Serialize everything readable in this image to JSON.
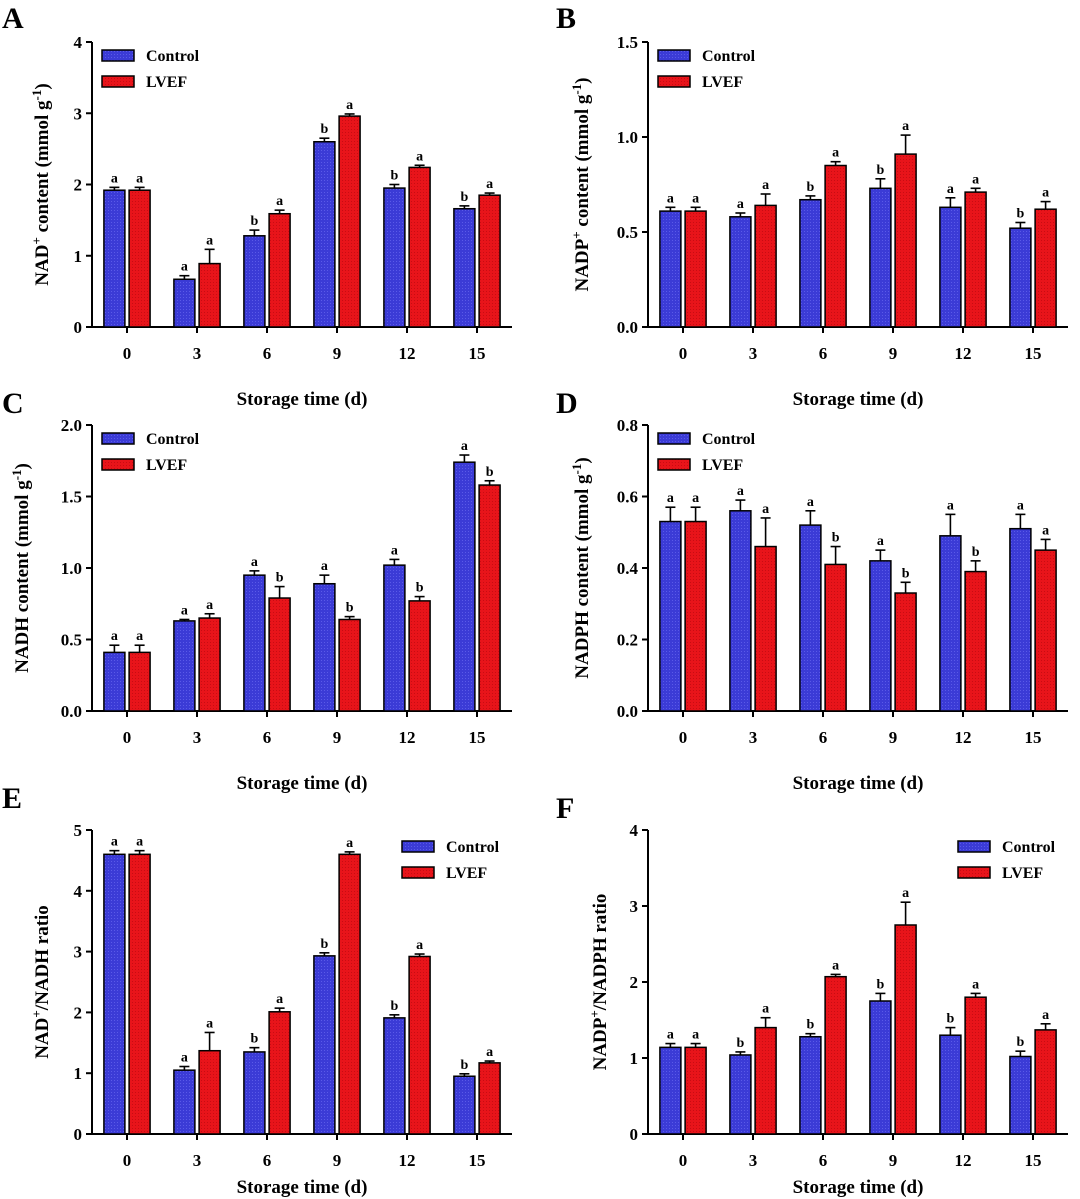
{
  "colors": {
    "control": "#3b3bd6",
    "lvef": "#e8141a",
    "axis": "#000000"
  },
  "legend_labels": [
    "Control",
    "LVEF"
  ],
  "chart_data": [
    {
      "type": "bar",
      "panel": "A",
      "ylabel_parts": {
        "pre": "NAD",
        "sup1": "+",
        "mid": " content (mmol g",
        "sup2": "-1",
        "post": ")"
      },
      "xlabel": "Storage time (d)",
      "categories": [
        "0",
        "3",
        "6",
        "9",
        "12",
        "15"
      ],
      "ylim": [
        0,
        4
      ],
      "yticks": [
        "0",
        "1",
        "2",
        "3",
        "4"
      ],
      "legend": "top-left",
      "series": [
        {
          "name": "Control",
          "values": [
            1.92,
            0.67,
            1.28,
            2.6,
            1.95,
            1.66
          ],
          "err": [
            0.04,
            0.05,
            0.08,
            0.05,
            0.05,
            0.04
          ],
          "sig": [
            "a",
            "a",
            "b",
            "b",
            "b",
            "b"
          ]
        },
        {
          "name": "LVEF",
          "values": [
            1.92,
            0.89,
            1.59,
            2.96,
            2.24,
            1.85
          ],
          "err": [
            0.04,
            0.2,
            0.05,
            0.03,
            0.03,
            0.03
          ],
          "sig": [
            "a",
            "a",
            "a",
            "a",
            "a",
            "a"
          ]
        }
      ]
    },
    {
      "type": "bar",
      "panel": "B",
      "ylabel_parts": {
        "pre": "NADP",
        "sup1": "+",
        "mid": " content (mmol g",
        "sup2": "-1",
        "post": ")"
      },
      "xlabel": "Storage time (d)",
      "categories": [
        "0",
        "3",
        "6",
        "9",
        "12",
        "15"
      ],
      "ylim": [
        0,
        1.5
      ],
      "yticks": [
        "0.0",
        "0.5",
        "1.0",
        "1.5"
      ],
      "legend": "top-left",
      "series": [
        {
          "name": "Control",
          "values": [
            0.61,
            0.58,
            0.67,
            0.73,
            0.63,
            0.52
          ],
          "err": [
            0.02,
            0.02,
            0.02,
            0.05,
            0.05,
            0.03
          ],
          "sig": [
            "a",
            "a",
            "b",
            "b",
            "a",
            "b"
          ]
        },
        {
          "name": "LVEF",
          "values": [
            0.61,
            0.64,
            0.85,
            0.91,
            0.71,
            0.62
          ],
          "err": [
            0.02,
            0.06,
            0.02,
            0.1,
            0.02,
            0.04
          ],
          "sig": [
            "a",
            "a",
            "a",
            "a",
            "a",
            "a"
          ]
        }
      ]
    },
    {
      "type": "bar",
      "panel": "C",
      "ylabel_parts": {
        "pre": "NADH content (mmol g",
        "sup1": "",
        "mid": "",
        "sup2": "-1",
        "post": ")"
      },
      "xlabel": "Storage time (d)",
      "categories": [
        "0",
        "3",
        "6",
        "9",
        "12",
        "15"
      ],
      "ylim": [
        0,
        2.0
      ],
      "yticks": [
        "0.0",
        "0.5",
        "1.0",
        "1.5",
        "2.0"
      ],
      "legend": "top-left",
      "series": [
        {
          "name": "Control",
          "values": [
            0.41,
            0.63,
            0.95,
            0.89,
            1.02,
            1.74
          ],
          "err": [
            0.05,
            0.01,
            0.03,
            0.06,
            0.04,
            0.05
          ],
          "sig": [
            "a",
            "a",
            "a",
            "a",
            "a",
            "a"
          ]
        },
        {
          "name": "LVEF",
          "values": [
            0.41,
            0.65,
            0.79,
            0.64,
            0.77,
            1.58
          ],
          "err": [
            0.05,
            0.03,
            0.08,
            0.02,
            0.03,
            0.03
          ],
          "sig": [
            "a",
            "a",
            "b",
            "b",
            "b",
            "b"
          ]
        }
      ]
    },
    {
      "type": "bar",
      "panel": "D",
      "ylabel_parts": {
        "pre": "NADPH content (mmol g",
        "sup1": "",
        "mid": "",
        "sup2": "-1",
        "post": ")"
      },
      "xlabel": "Storage time (d)",
      "categories": [
        "0",
        "3",
        "6",
        "9",
        "12",
        "15"
      ],
      "ylim": [
        0,
        0.8
      ],
      "yticks": [
        "0.0",
        "0.2",
        "0.4",
        "0.6",
        "0.8"
      ],
      "legend": "top-left",
      "series": [
        {
          "name": "Control",
          "values": [
            0.53,
            0.56,
            0.52,
            0.42,
            0.49,
            0.51
          ],
          "err": [
            0.04,
            0.03,
            0.04,
            0.03,
            0.06,
            0.04
          ],
          "sig": [
            "a",
            "a",
            "a",
            "a",
            "a",
            "a"
          ]
        },
        {
          "name": "LVEF",
          "values": [
            0.53,
            0.46,
            0.41,
            0.33,
            0.39,
            0.45
          ],
          "err": [
            0.04,
            0.08,
            0.05,
            0.03,
            0.03,
            0.03
          ],
          "sig": [
            "a",
            "a",
            "b",
            "b",
            "b",
            "a"
          ]
        }
      ]
    },
    {
      "type": "bar",
      "panel": "E",
      "ylabel_parts": {
        "pre": "NAD",
        "sup1": "+",
        "mid": "/NADH ratio",
        "sup2": "",
        "post": ""
      },
      "xlabel": "Storage time (d)",
      "categories": [
        "0",
        "3",
        "6",
        "9",
        "12",
        "15"
      ],
      "ylim": [
        0,
        5
      ],
      "yticks": [
        "0",
        "1",
        "2",
        "3",
        "4",
        "5"
      ],
      "legend": "top-right",
      "series": [
        {
          "name": "Control",
          "values": [
            4.6,
            1.05,
            1.35,
            2.93,
            1.91,
            0.95
          ],
          "err": [
            0.06,
            0.06,
            0.07,
            0.05,
            0.05,
            0.04
          ],
          "sig": [
            "a",
            "a",
            "b",
            "b",
            "b",
            "b"
          ]
        },
        {
          "name": "LVEF",
          "values": [
            4.6,
            1.37,
            2.01,
            4.6,
            2.92,
            1.17
          ],
          "err": [
            0.06,
            0.3,
            0.06,
            0.04,
            0.04,
            0.03
          ],
          "sig": [
            "a",
            "a",
            "a",
            "a",
            "a",
            "a"
          ]
        }
      ]
    },
    {
      "type": "bar",
      "panel": "F",
      "ylabel_parts": {
        "pre": "NADP",
        "sup1": "+",
        "mid": "/NADPH ratio",
        "sup2": "",
        "post": ""
      },
      "xlabel": "Storage time (d)",
      "categories": [
        "0",
        "3",
        "6",
        "9",
        "12",
        "15"
      ],
      "ylim": [
        0,
        4
      ],
      "yticks": [
        "0",
        "1",
        "2",
        "3",
        "4"
      ],
      "legend": "top-right",
      "series": [
        {
          "name": "Control",
          "values": [
            1.14,
            1.04,
            1.28,
            1.75,
            1.3,
            1.02
          ],
          "err": [
            0.05,
            0.04,
            0.04,
            0.1,
            0.1,
            0.07
          ],
          "sig": [
            "a",
            "b",
            "b",
            "b",
            "b",
            "b"
          ]
        },
        {
          "name": "LVEF",
          "values": [
            1.14,
            1.4,
            2.07,
            2.75,
            1.8,
            1.37
          ],
          "err": [
            0.05,
            0.13,
            0.03,
            0.3,
            0.05,
            0.08
          ],
          "sig": [
            "a",
            "a",
            "a",
            "a",
            "a",
            "a"
          ]
        }
      ]
    }
  ]
}
